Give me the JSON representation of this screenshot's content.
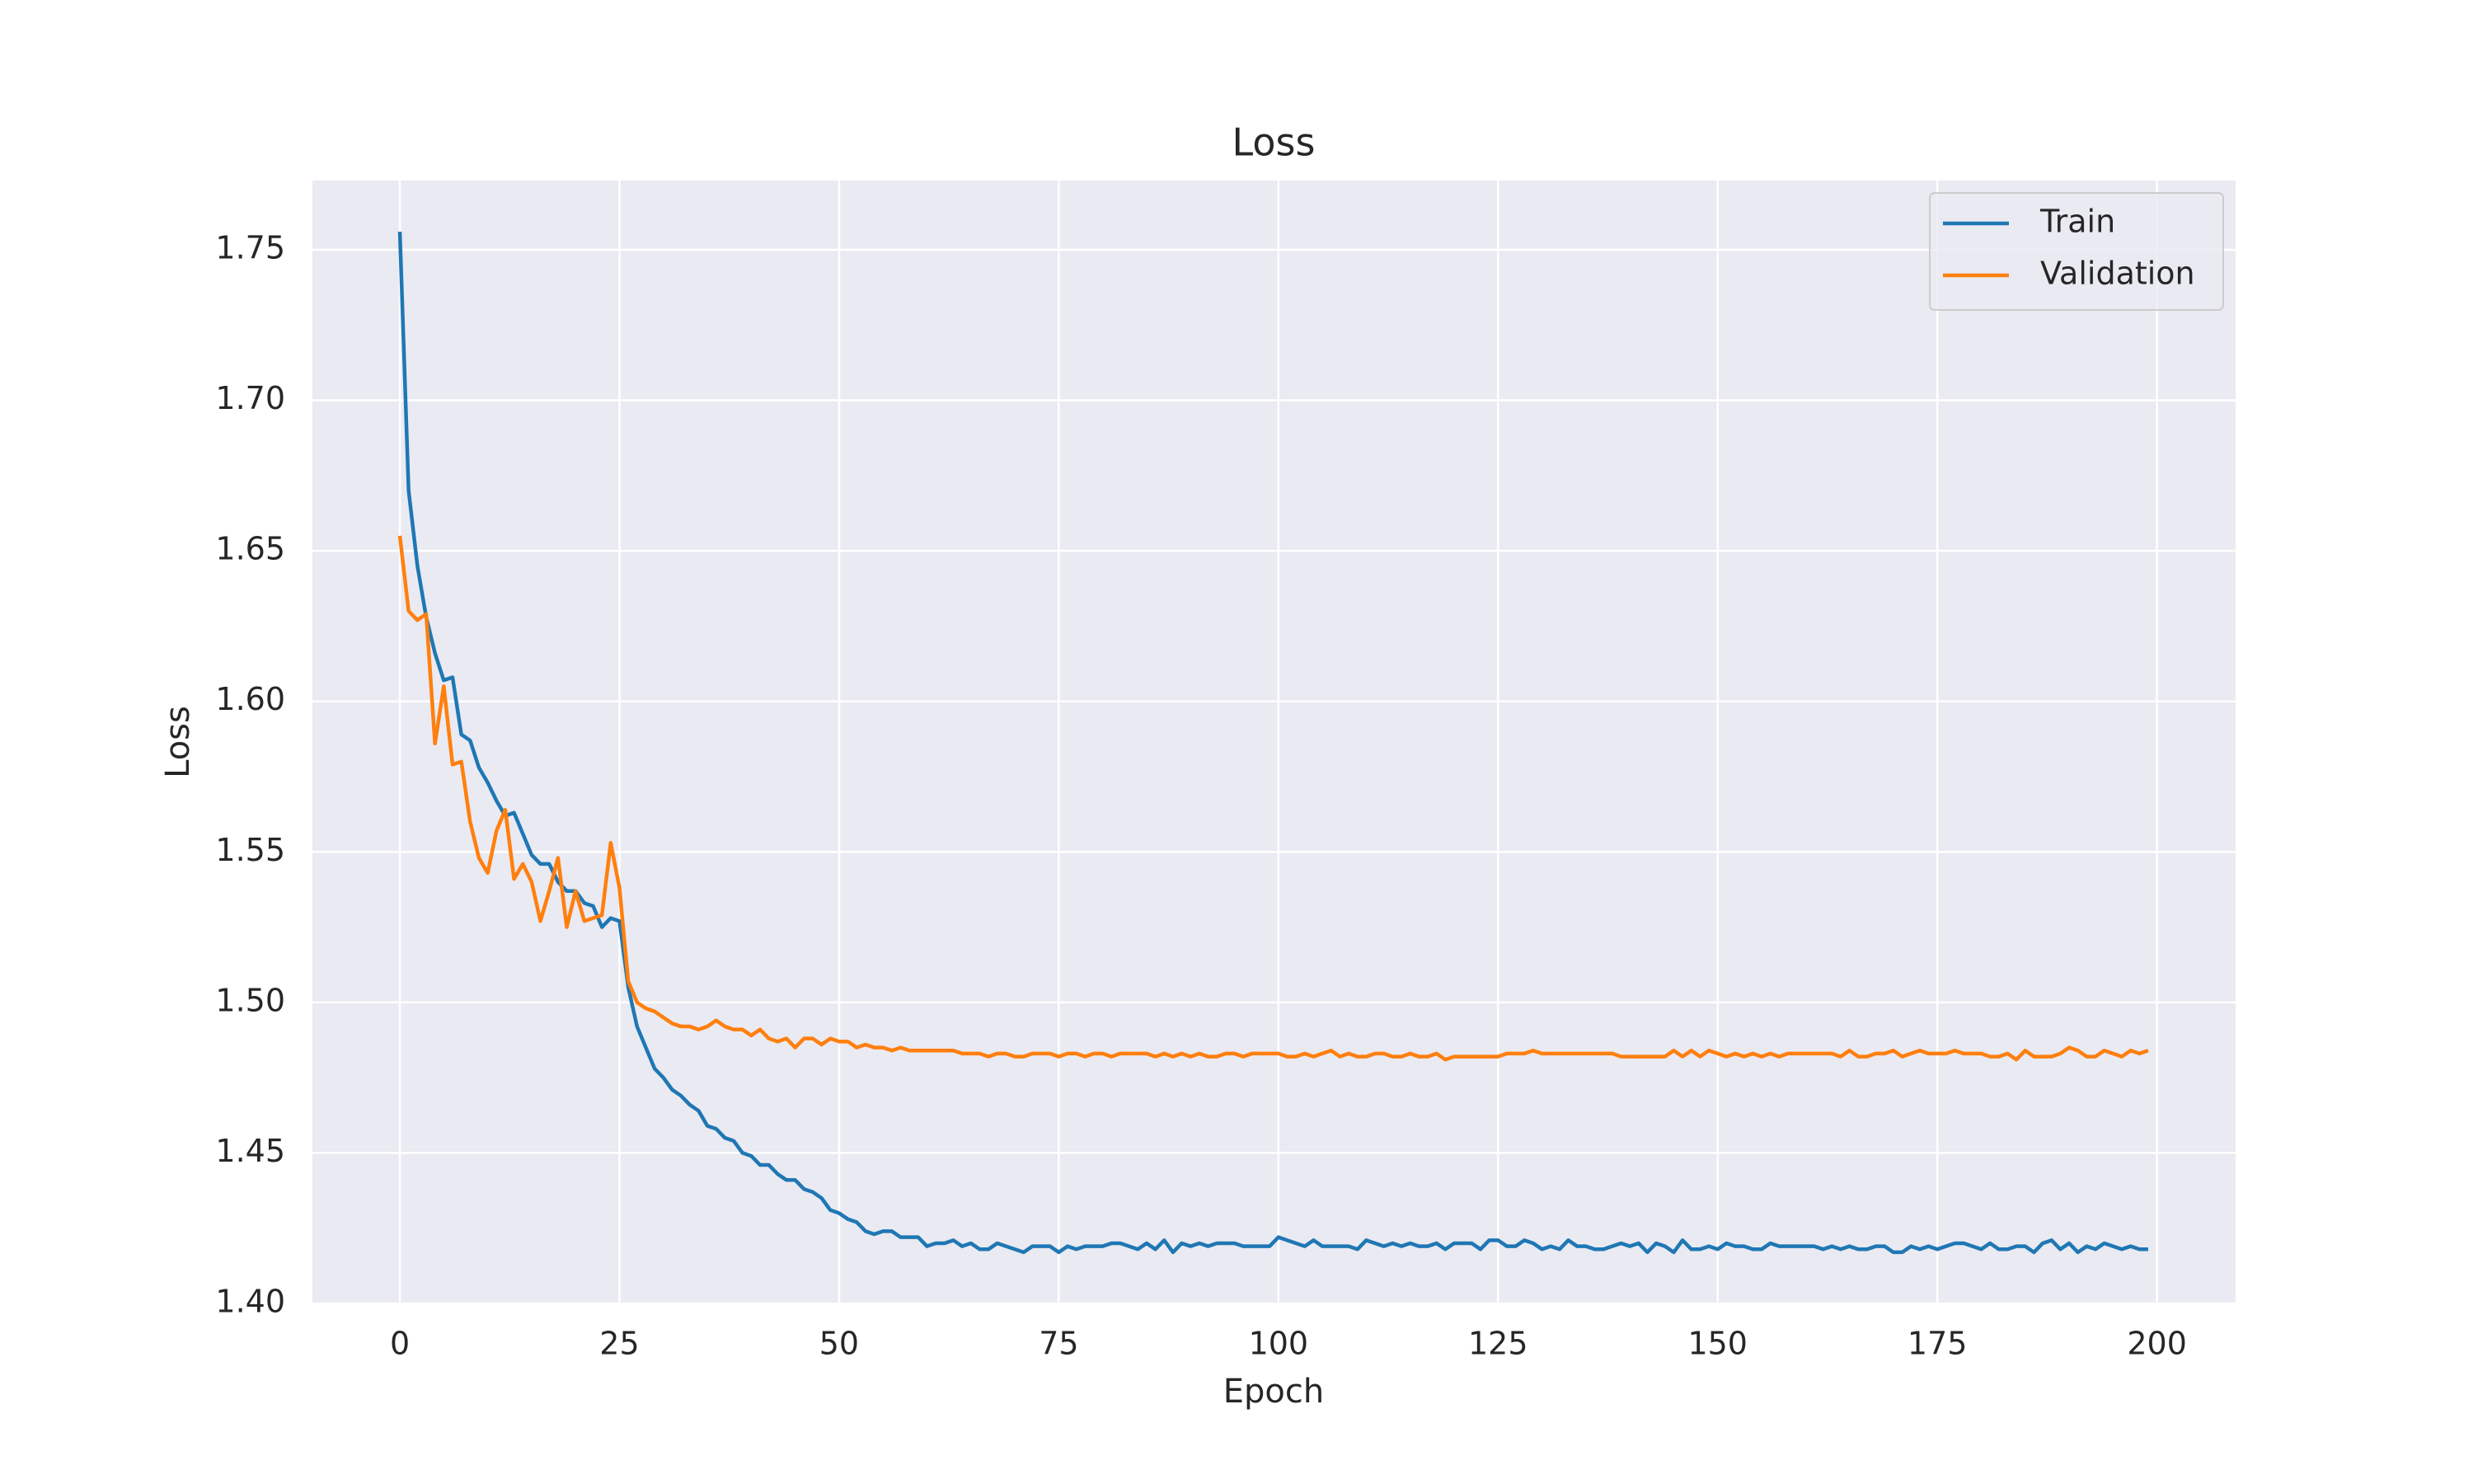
{
  "chart_data": {
    "type": "line",
    "title": "Loss",
    "x_label": "Epoch",
    "y_label": "Loss",
    "x": [
      0,
      1,
      2,
      3,
      4,
      5,
      6,
      7,
      8,
      9,
      10,
      11,
      12,
      13,
      14,
      15,
      16,
      17,
      18,
      19,
      20,
      21,
      22,
      23,
      24,
      25,
      26,
      27,
      28,
      29,
      30,
      31,
      32,
      33,
      34,
      35,
      36,
      37,
      38,
      39,
      40,
      41,
      42,
      43,
      44,
      45,
      46,
      47,
      48,
      49,
      50,
      51,
      52,
      53,
      54,
      55,
      56,
      57,
      58,
      59,
      60,
      61,
      62,
      63,
      64,
      65,
      66,
      67,
      68,
      69,
      70,
      71,
      72,
      73,
      74,
      75,
      76,
      77,
      78,
      79,
      80,
      81,
      82,
      83,
      84,
      85,
      86,
      87,
      88,
      89,
      90,
      91,
      92,
      93,
      94,
      95,
      96,
      97,
      98,
      99,
      100,
      101,
      102,
      103,
      104,
      105,
      106,
      107,
      108,
      109,
      110,
      111,
      112,
      113,
      114,
      115,
      116,
      117,
      118,
      119,
      120,
      121,
      122,
      123,
      124,
      125,
      126,
      127,
      128,
      129,
      130,
      131,
      132,
      133,
      134,
      135,
      136,
      137,
      138,
      139,
      140,
      141,
      142,
      143,
      144,
      145,
      146,
      147,
      148,
      149,
      150,
      151,
      152,
      153,
      154,
      155,
      156,
      157,
      158,
      159,
      160,
      161,
      162,
      163,
      164,
      165,
      166,
      167,
      168,
      169,
      170,
      171,
      172,
      173,
      174,
      175,
      176,
      177,
      178,
      179,
      180,
      181,
      182,
      183,
      184,
      185,
      186,
      187,
      188,
      189,
      190,
      191,
      192,
      193,
      194,
      195,
      196,
      197,
      198,
      199
    ],
    "series": [
      {
        "name": "Train",
        "color": "#1f77b4",
        "values": [
          1.756,
          1.67,
          1.645,
          1.628,
          1.616,
          1.607,
          1.608,
          1.589,
          1.587,
          1.578,
          1.573,
          1.567,
          1.562,
          1.563,
          1.556,
          1.549,
          1.546,
          1.546,
          1.54,
          1.537,
          1.537,
          1.533,
          1.532,
          1.525,
          1.528,
          1.527,
          1.505,
          1.492,
          1.485,
          1.478,
          1.475,
          1.471,
          1.469,
          1.466,
          1.464,
          1.459,
          1.458,
          1.455,
          1.454,
          1.45,
          1.449,
          1.446,
          1.446,
          1.443,
          1.441,
          1.441,
          1.438,
          1.437,
          1.435,
          1.431,
          1.43,
          1.428,
          1.427,
          1.424,
          1.423,
          1.424,
          1.424,
          1.422,
          1.422,
          1.422,
          1.419,
          1.42,
          1.42,
          1.421,
          1.419,
          1.42,
          1.418,
          1.418,
          1.42,
          1.419,
          1.418,
          1.417,
          1.419,
          1.419,
          1.419,
          1.417,
          1.419,
          1.418,
          1.419,
          1.419,
          1.419,
          1.42,
          1.42,
          1.419,
          1.418,
          1.42,
          1.418,
          1.421,
          1.417,
          1.42,
          1.419,
          1.42,
          1.419,
          1.42,
          1.42,
          1.42,
          1.419,
          1.419,
          1.419,
          1.419,
          1.422,
          1.421,
          1.42,
          1.419,
          1.421,
          1.419,
          1.419,
          1.419,
          1.419,
          1.418,
          1.421,
          1.42,
          1.419,
          1.42,
          1.419,
          1.42,
          1.419,
          1.419,
          1.42,
          1.418,
          1.42,
          1.42,
          1.42,
          1.418,
          1.421,
          1.421,
          1.419,
          1.419,
          1.421,
          1.42,
          1.418,
          1.419,
          1.418,
          1.421,
          1.419,
          1.419,
          1.418,
          1.418,
          1.419,
          1.42,
          1.419,
          1.42,
          1.417,
          1.42,
          1.419,
          1.417,
          1.421,
          1.418,
          1.418,
          1.419,
          1.418,
          1.42,
          1.419,
          1.419,
          1.418,
          1.418,
          1.42,
          1.419,
          1.419,
          1.419,
          1.419,
          1.419,
          1.418,
          1.419,
          1.418,
          1.419,
          1.418,
          1.418,
          1.419,
          1.419,
          1.417,
          1.417,
          1.419,
          1.418,
          1.419,
          1.418,
          1.419,
          1.42,
          1.42,
          1.419,
          1.418,
          1.42,
          1.418,
          1.418,
          1.419,
          1.419,
          1.417,
          1.42,
          1.421,
          1.418,
          1.42,
          1.417,
          1.419,
          1.418,
          1.42,
          1.419,
          1.418,
          1.419,
          1.418,
          1.418
        ]
      },
      {
        "name": "Validation",
        "color": "#ff7f0e",
        "values": [
          1.655,
          1.63,
          1.627,
          1.629,
          1.586,
          1.605,
          1.579,
          1.58,
          1.56,
          1.548,
          1.543,
          1.557,
          1.564,
          1.541,
          1.546,
          1.54,
          1.527,
          1.537,
          1.548,
          1.525,
          1.537,
          1.527,
          1.528,
          1.529,
          1.553,
          1.538,
          1.507,
          1.5,
          1.498,
          1.497,
          1.495,
          1.493,
          1.492,
          1.492,
          1.491,
          1.492,
          1.494,
          1.492,
          1.491,
          1.491,
          1.489,
          1.491,
          1.488,
          1.487,
          1.488,
          1.485,
          1.488,
          1.488,
          1.486,
          1.488,
          1.487,
          1.487,
          1.485,
          1.486,
          1.485,
          1.485,
          1.484,
          1.485,
          1.484,
          1.484,
          1.484,
          1.484,
          1.484,
          1.484,
          1.483,
          1.483,
          1.483,
          1.482,
          1.483,
          1.483,
          1.482,
          1.482,
          1.483,
          1.483,
          1.483,
          1.482,
          1.483,
          1.483,
          1.482,
          1.483,
          1.483,
          1.482,
          1.483,
          1.483,
          1.483,
          1.483,
          1.482,
          1.483,
          1.482,
          1.483,
          1.482,
          1.483,
          1.482,
          1.482,
          1.483,
          1.483,
          1.482,
          1.483,
          1.483,
          1.483,
          1.483,
          1.482,
          1.482,
          1.483,
          1.482,
          1.483,
          1.484,
          1.482,
          1.483,
          1.482,
          1.482,
          1.483,
          1.483,
          1.482,
          1.482,
          1.483,
          1.482,
          1.482,
          1.483,
          1.481,
          1.482,
          1.482,
          1.482,
          1.482,
          1.482,
          1.482,
          1.483,
          1.483,
          1.483,
          1.484,
          1.483,
          1.483,
          1.483,
          1.483,
          1.483,
          1.483,
          1.483,
          1.483,
          1.483,
          1.482,
          1.482,
          1.482,
          1.482,
          1.482,
          1.482,
          1.484,
          1.482,
          1.484,
          1.482,
          1.484,
          1.483,
          1.482,
          1.483,
          1.482,
          1.483,
          1.482,
          1.483,
          1.482,
          1.483,
          1.483,
          1.483,
          1.483,
          1.483,
          1.483,
          1.482,
          1.484,
          1.482,
          1.482,
          1.483,
          1.483,
          1.484,
          1.482,
          1.483,
          1.484,
          1.483,
          1.483,
          1.483,
          1.484,
          1.483,
          1.483,
          1.483,
          1.482,
          1.482,
          1.483,
          1.481,
          1.484,
          1.482,
          1.482,
          1.482,
          1.483,
          1.485,
          1.484,
          1.482,
          1.482,
          1.484,
          1.483,
          1.482,
          1.484,
          1.483,
          1.484
        ]
      }
    ],
    "xlim": [
      -9.95,
      208.95
    ],
    "xticks": [
      0,
      25,
      50,
      75,
      100,
      125,
      150,
      175,
      200
    ],
    "ylim": [
      1.4,
      1.773
    ],
    "yticks": [
      {
        "value": 1.4,
        "label": "1.40"
      },
      1.45,
      {
        "value": 1.5,
        "label": "1.50"
      },
      1.55,
      {
        "value": 1.6,
        "label": "1.60"
      },
      1.65,
      {
        "value": 1.7,
        "label": "1.70"
      },
      1.75
    ],
    "grid": true,
    "legend": "upper right"
  }
}
